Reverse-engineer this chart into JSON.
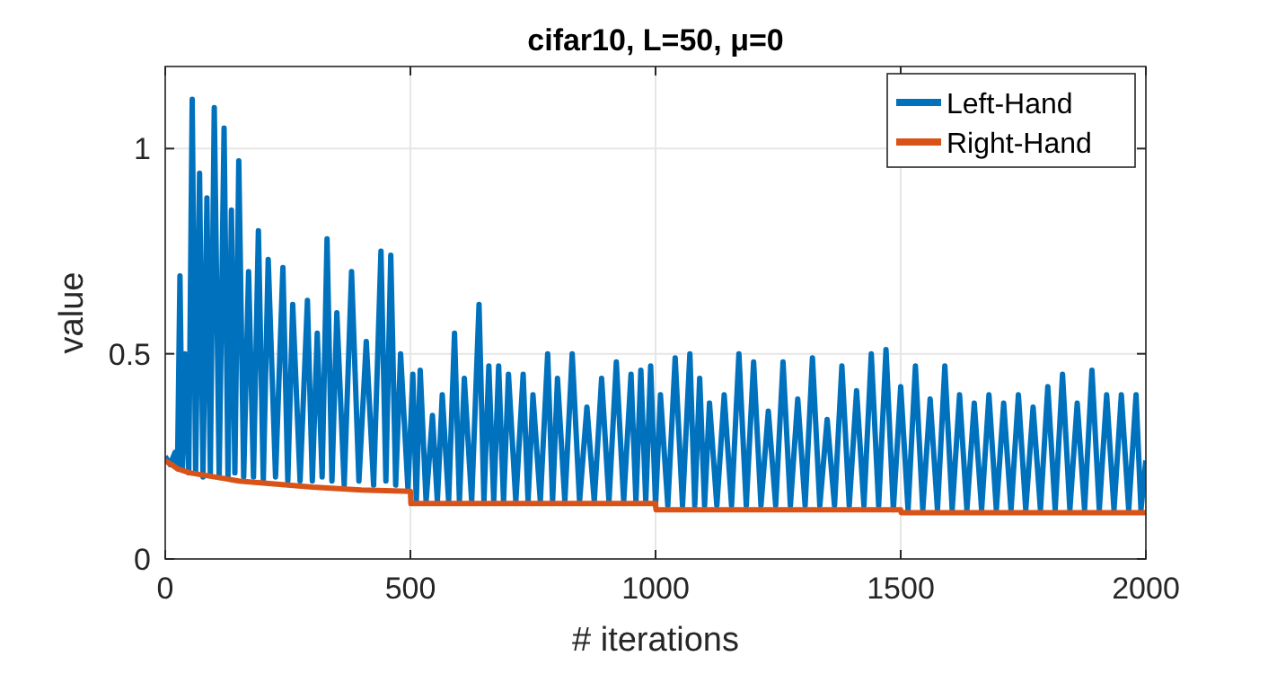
{
  "chart_data": {
    "type": "line",
    "title": "cifar10, L=50, μ=0",
    "xlabel": "# iterations",
    "ylabel": "value",
    "xlim": [
      0,
      2000
    ],
    "ylim": [
      0,
      1.2
    ],
    "xticks": [
      0,
      500,
      1000,
      1500,
      2000
    ],
    "yticks": [
      0,
      0.5,
      1
    ],
    "grid": true,
    "legend": "top right",
    "line_style": "solid",
    "series": [
      {
        "name": "Left-Hand",
        "color": "#0072bd",
        "x": [
          0,
          10,
          20,
          25,
          30,
          35,
          40,
          48,
          55,
          62,
          70,
          77,
          85,
          92,
          100,
          110,
          120,
          128,
          135,
          142,
          150,
          160,
          170,
          180,
          190,
          200,
          210,
          225,
          240,
          250,
          260,
          275,
          290,
          300,
          310,
          320,
          330,
          340,
          350,
          365,
          380,
          395,
          410,
          425,
          440,
          450,
          460,
          470,
          480,
          495,
          505,
          512,
          520,
          532,
          545,
          555,
          565,
          578,
          590,
          600,
          610,
          625,
          640,
          650,
          660,
          670,
          680,
          690,
          700,
          715,
          730,
          740,
          750,
          765,
          780,
          790,
          800,
          815,
          830,
          845,
          860,
          875,
          890,
          905,
          920,
          935,
          950,
          960,
          970,
          980,
          990,
          1000,
          1010,
          1025,
          1040,
          1055,
          1070,
          1080,
          1090,
          1100,
          1110,
          1125,
          1140,
          1155,
          1170,
          1185,
          1200,
          1215,
          1230,
          1245,
          1260,
          1275,
          1290,
          1305,
          1320,
          1335,
          1350,
          1365,
          1380,
          1395,
          1410,
          1425,
          1440,
          1455,
          1470,
          1485,
          1500,
          1515,
          1530,
          1545,
          1560,
          1575,
          1590,
          1605,
          1620,
          1635,
          1650,
          1665,
          1680,
          1695,
          1710,
          1725,
          1740,
          1755,
          1770,
          1785,
          1800,
          1815,
          1830,
          1845,
          1860,
          1875,
          1890,
          1905,
          1920,
          1935,
          1950,
          1965,
          1980,
          1990,
          2000
        ],
        "values": [
          0.25,
          0.23,
          0.26,
          0.22,
          0.69,
          0.22,
          0.5,
          0.21,
          1.12,
          0.21,
          0.94,
          0.2,
          0.88,
          0.21,
          1.1,
          0.2,
          1.05,
          0.2,
          0.85,
          0.21,
          0.97,
          0.2,
          0.7,
          0.2,
          0.8,
          0.19,
          0.73,
          0.2,
          0.71,
          0.19,
          0.62,
          0.19,
          0.63,
          0.19,
          0.55,
          0.2,
          0.78,
          0.19,
          0.6,
          0.18,
          0.7,
          0.19,
          0.53,
          0.18,
          0.75,
          0.19,
          0.74,
          0.18,
          0.5,
          0.17,
          0.45,
          0.14,
          0.46,
          0.14,
          0.35,
          0.14,
          0.4,
          0.14,
          0.55,
          0.14,
          0.44,
          0.14,
          0.62,
          0.14,
          0.47,
          0.14,
          0.47,
          0.14,
          0.45,
          0.14,
          0.45,
          0.14,
          0.4,
          0.14,
          0.5,
          0.14,
          0.44,
          0.14,
          0.5,
          0.14,
          0.37,
          0.14,
          0.44,
          0.14,
          0.48,
          0.14,
          0.45,
          0.14,
          0.46,
          0.14,
          0.47,
          0.13,
          0.4,
          0.13,
          0.49,
          0.13,
          0.5,
          0.13,
          0.44,
          0.13,
          0.38,
          0.13,
          0.4,
          0.13,
          0.5,
          0.13,
          0.48,
          0.13,
          0.36,
          0.13,
          0.48,
          0.13,
          0.39,
          0.13,
          0.49,
          0.13,
          0.34,
          0.13,
          0.47,
          0.13,
          0.41,
          0.13,
          0.5,
          0.13,
          0.51,
          0.12,
          0.42,
          0.12,
          0.47,
          0.12,
          0.39,
          0.12,
          0.47,
          0.12,
          0.4,
          0.12,
          0.38,
          0.12,
          0.4,
          0.12,
          0.38,
          0.12,
          0.4,
          0.12,
          0.37,
          0.12,
          0.42,
          0.12,
          0.45,
          0.12,
          0.38,
          0.12,
          0.46,
          0.12,
          0.4,
          0.12,
          0.4,
          0.12,
          0.4,
          0.12,
          0.24
        ]
      },
      {
        "name": "Right-Hand",
        "color": "#d95319",
        "x": [
          0,
          25,
          50,
          100,
          150,
          200,
          300,
          400,
          500,
          501,
          1000,
          1001,
          1500,
          1501,
          2000
        ],
        "values": [
          0.24,
          0.22,
          0.21,
          0.2,
          0.19,
          0.185,
          0.175,
          0.168,
          0.165,
          0.135,
          0.135,
          0.12,
          0.12,
          0.113,
          0.113
        ]
      }
    ]
  }
}
